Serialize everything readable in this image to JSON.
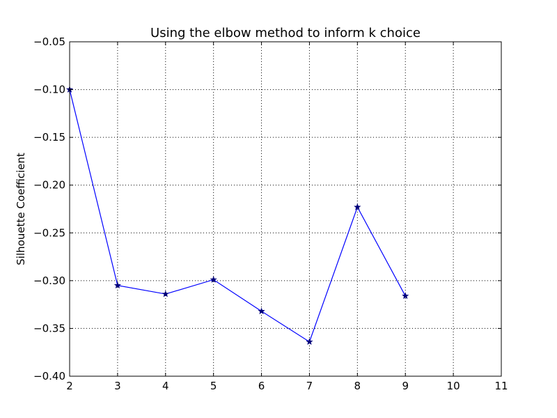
{
  "chart_data": {
    "type": "line",
    "title": "Using the elbow method to inform k choice",
    "xlabel": "",
    "ylabel": "Silhouette Coefficient",
    "x": [
      2,
      3,
      4,
      5,
      6,
      7,
      8,
      9
    ],
    "series": [
      {
        "values": [
          -0.1,
          -0.305,
          -0.314,
          -0.299,
          -0.332,
          -0.364,
          -0.223,
          -0.316
        ],
        "color": "#0000ff",
        "marker": "star",
        "marker_color": "#00007a"
      }
    ],
    "xlim": [
      2,
      11
    ],
    "ylim": [
      -0.4,
      -0.05
    ],
    "xticks": [
      2,
      3,
      4,
      5,
      6,
      7,
      8,
      9,
      10,
      11
    ],
    "xtick_labels": [
      "2",
      "3",
      "4",
      "5",
      "6",
      "7",
      "8",
      "9",
      "10",
      "11"
    ],
    "yticks": [
      -0.05,
      -0.1,
      -0.15,
      -0.2,
      -0.25,
      -0.3,
      -0.35,
      -0.4
    ],
    "ytick_labels": [
      "−0.05",
      "−0.10",
      "−0.15",
      "−0.20",
      "−0.25",
      "−0.30",
      "−0.35",
      "−0.40"
    ],
    "grid": true,
    "legend": "none"
  }
}
